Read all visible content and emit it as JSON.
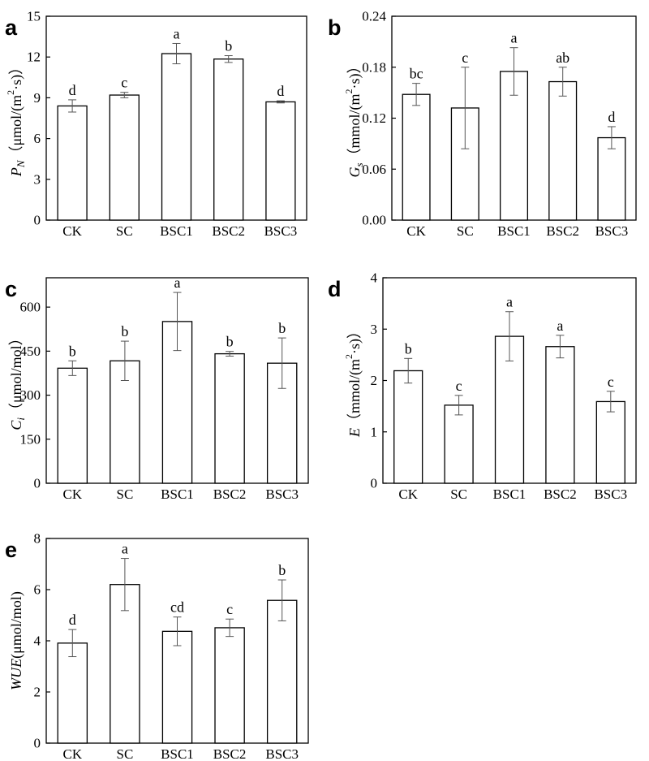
{
  "figure": {
    "background": "#ffffff",
    "stroke": "#000000",
    "bar_fill": "#ffffff",
    "error_color": "#555555"
  },
  "chart_data": [
    {
      "type": "bar",
      "panel": "a",
      "categories": [
        "CK",
        "SC",
        "BSC1",
        "BSC2",
        "BSC3"
      ],
      "values": [
        8.4,
        9.2,
        12.25,
        11.85,
        8.7
      ],
      "errors": [
        0.45,
        0.2,
        0.75,
        0.25,
        0.08
      ],
      "significance": [
        "d",
        "c",
        "a",
        "b",
        "d"
      ],
      "ylabel": {
        "main": "P",
        "sub": "N",
        "unit_pre": "（μmol/(m",
        "sup": "2",
        "unit_post": "·s)）"
      },
      "ylim": [
        0,
        15
      ],
      "yticks": [
        0,
        3,
        6,
        9,
        12,
        15
      ],
      "ytick_labels": [
        "0",
        "3",
        "6",
        "9",
        "12",
        "15"
      ]
    },
    {
      "type": "bar",
      "panel": "b",
      "categories": [
        "CK",
        "SC",
        "BSC1",
        "BSC2",
        "BSC3"
      ],
      "values": [
        0.148,
        0.132,
        0.175,
        0.163,
        0.097
      ],
      "errors": [
        0.013,
        0.048,
        0.028,
        0.017,
        0.013
      ],
      "significance": [
        "bc",
        "c",
        "a",
        "ab",
        "d"
      ],
      "ylabel": {
        "main": "G",
        "sub": "s",
        "unit_pre": "（mmol/(m",
        "sup": "2",
        "unit_post": "·s)）"
      },
      "ylim": [
        0,
        0.24
      ],
      "yticks": [
        0,
        0.06,
        0.12,
        0.18,
        0.24
      ],
      "ytick_labels": [
        "0.00",
        "0.06",
        "0.12",
        "0.18",
        "0.24"
      ]
    },
    {
      "type": "bar",
      "panel": "c",
      "categories": [
        "CK",
        "SC",
        "BSC1",
        "BSC2",
        "BSC3"
      ],
      "values": [
        392,
        417,
        551,
        441,
        409
      ],
      "errors": [
        25,
        67,
        99,
        8,
        86
      ],
      "significance": [
        "b",
        "b",
        "a",
        "b",
        "b"
      ],
      "ylabel": {
        "main": "C",
        "sub": "i",
        "unit_pre": "（μmol/mol）",
        "sup": "",
        "unit_post": ""
      },
      "ylim": [
        0,
        700
      ],
      "yticks": [
        0,
        150,
        300,
        450,
        600
      ],
      "ytick_labels": [
        "0",
        "150",
        "300",
        "450",
        "600"
      ]
    },
    {
      "type": "bar",
      "panel": "d",
      "categories": [
        "CK",
        "SC",
        "BSC1",
        "BSC2",
        "BSC3"
      ],
      "values": [
        2.19,
        1.52,
        2.86,
        2.66,
        1.59
      ],
      "errors": [
        0.24,
        0.19,
        0.48,
        0.22,
        0.2
      ],
      "significance": [
        "b",
        "c",
        "a",
        "a",
        "c"
      ],
      "ylabel": {
        "main": "E",
        "sub": "",
        "unit_pre": "（mmol/(m",
        "sup": "2",
        "unit_post": "·s)）"
      },
      "ylim": [
        0,
        4
      ],
      "yticks": [
        0,
        1,
        2,
        3,
        4
      ],
      "ytick_labels": [
        "0",
        "1",
        "2",
        "3",
        "4"
      ]
    },
    {
      "type": "bar",
      "panel": "e",
      "categories": [
        "CK",
        "SC",
        "BSC1",
        "BSC2",
        "BSC3"
      ],
      "values": [
        3.91,
        6.2,
        4.37,
        4.51,
        5.58
      ],
      "errors": [
        0.53,
        1.02,
        0.56,
        0.34,
        0.8
      ],
      "significance": [
        "d",
        "a",
        "cd",
        "c",
        "b"
      ],
      "ylabel": {
        "main": "WUE",
        "sub": "",
        "unit_pre": "(μmol/mol)",
        "sup": "",
        "unit_post": ""
      },
      "ylim": [
        0,
        8
      ],
      "yticks": [
        0,
        2,
        4,
        6,
        8
      ],
      "ytick_labels": [
        "0",
        "2",
        "4",
        "6",
        "8"
      ]
    }
  ]
}
